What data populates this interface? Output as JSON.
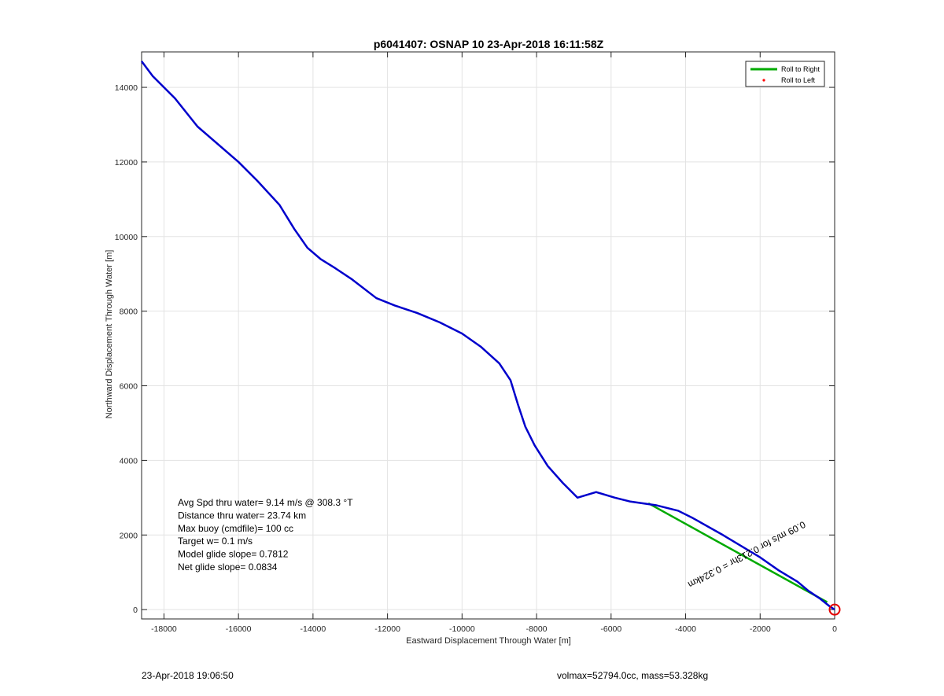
{
  "chart_data": {
    "type": "line",
    "title": "p6041407: OSNAP 10 23-Apr-2018 16:11:58Z",
    "xlabel": "Eastward Displacement Through Water [m]",
    "ylabel": "Northward Displacement Through Water [m]",
    "xlim": [
      -18600,
      0
    ],
    "ylim": [
      -250,
      14950
    ],
    "xticks": [
      -18000,
      -16000,
      -14000,
      -12000,
      -10000,
      -8000,
      -6000,
      -4000,
      -2000,
      0
    ],
    "yticks": [
      0,
      2000,
      4000,
      6000,
      8000,
      10000,
      12000,
      14000
    ],
    "grid": true,
    "legend": {
      "position": "top-right",
      "entries": [
        {
          "label": "Roll to Right",
          "color": "#00aa00",
          "style": "line"
        },
        {
          "label": "Roll to Left",
          "color": "#ff0000",
          "style": "dot"
        }
      ]
    },
    "series": [
      {
        "color": "#0000cc",
        "x": [
          -18600,
          -18300,
          -17700,
          -17100,
          -16000,
          -15500,
          -14900,
          -14500,
          -14150,
          -13800,
          -13400,
          -12950,
          -12300,
          -11800,
          -11200,
          -10600,
          -10000,
          -9500,
          -9000,
          -8700,
          -8500,
          -8300,
          -8050,
          -7700,
          -7300,
          -6900,
          -6400,
          -5900,
          -5500,
          -4800,
          -4200,
          -3800,
          -3000,
          -2000,
          -1500,
          -1000,
          -700,
          -400,
          -150,
          0
        ],
        "y": [
          14700,
          14300,
          13700,
          12950,
          12000,
          11500,
          10850,
          10200,
          9700,
          9400,
          9150,
          8850,
          8350,
          8150,
          7950,
          7700,
          7400,
          7050,
          6600,
          6150,
          5500,
          4900,
          4400,
          3850,
          3400,
          3000,
          3150,
          3000,
          2900,
          2800,
          2650,
          2450,
          2000,
          1400,
          1050,
          750,
          500,
          300,
          100,
          0
        ]
      }
    ],
    "roll_right_segments": [
      {
        "x": [
          -5000,
          -200
        ],
        "y": [
          2850,
          200
        ]
      }
    ],
    "end_marker": {
      "x": 0,
      "y": 0,
      "color": "#e60000"
    },
    "path_annotation": {
      "text": "0.09 m/s for 0.213hr = 0.324km",
      "x": -2400,
      "y": 1550,
      "angle_deg": 152
    }
  },
  "stats": [
    "Avg Spd thru water=  9.14 m/s @ 308.3 °T",
    "Distance thru water= 23.74 km",
    "Max buoy (cmdfile)= 100 cc",
    "Target w= 0.1 m/s",
    "Model glide slope= 0.7812",
    "Net glide slope= 0.0834"
  ],
  "footer": {
    "timestamp": "23-Apr-2018 19:06:50",
    "mass_info": "volmax=52794.0cc, mass=53.328kg"
  }
}
